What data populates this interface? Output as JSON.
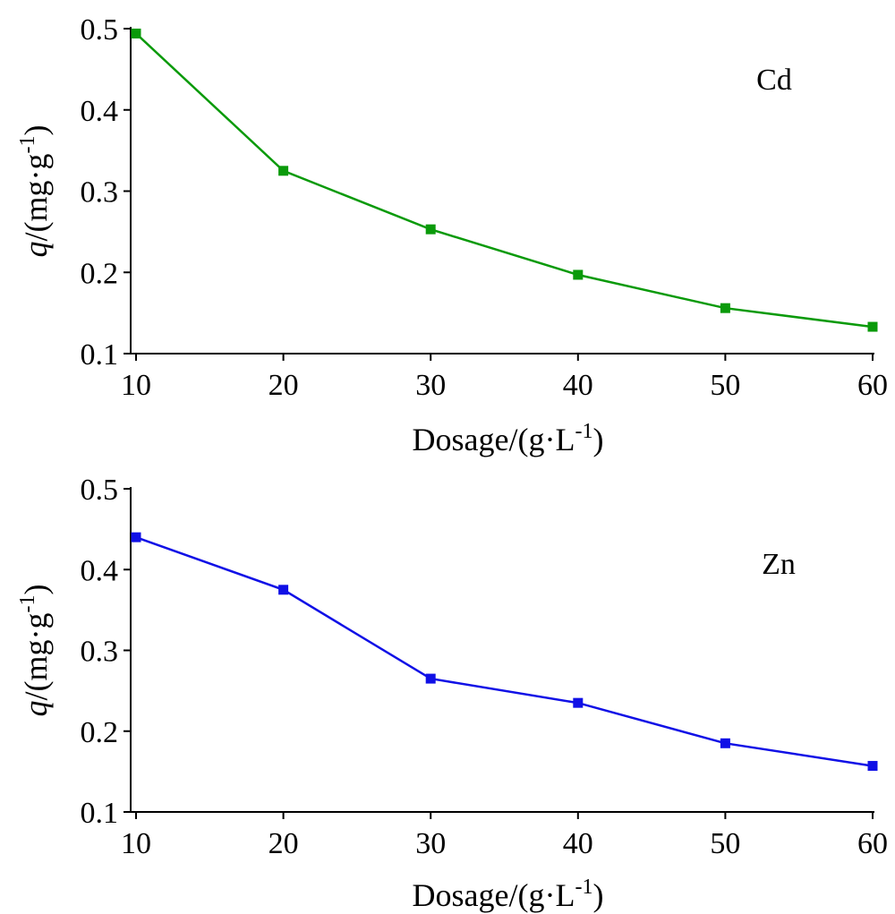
{
  "chart_data": [
    {
      "type": "line",
      "annotation": "Cd",
      "xlabel_parts": [
        "Dosage/(g·L",
        "-1",
        ")"
      ],
      "ylabel_parts": [
        "q",
        "/(mg·g",
        "-1",
        ")"
      ],
      "x": [
        10,
        20,
        30,
        40,
        50,
        60
      ],
      "series": [
        {
          "values": [
            0.494,
            0.325,
            0.253,
            0.197,
            0.156,
            0.133
          ],
          "color": "#0a9a0a"
        }
      ],
      "xlim": [
        10,
        60
      ],
      "ylim": [
        0.1,
        0.5
      ],
      "xticks": [
        "10",
        "20",
        "30",
        "40",
        "50",
        "60"
      ],
      "yticks": [
        "0.1",
        "0.2",
        "0.3",
        "0.4",
        "0.5"
      ],
      "grid": false,
      "marker": "square"
    },
    {
      "type": "line",
      "annotation": "Zn",
      "xlabel_parts": [
        "Dosage/(g·L",
        "-1",
        ")"
      ],
      "ylabel_parts": [
        "q",
        "/(mg·g",
        "-1",
        ")"
      ],
      "x": [
        10,
        20,
        30,
        40,
        50,
        60
      ],
      "series": [
        {
          "values": [
            0.44,
            0.375,
            0.265,
            0.235,
            0.185,
            0.157
          ],
          "color": "#1010e6"
        }
      ],
      "xlim": [
        10,
        60
      ],
      "ylim": [
        0.1,
        0.5
      ],
      "xticks": [
        "10",
        "20",
        "30",
        "40",
        "50",
        "60"
      ],
      "yticks": [
        "0.1",
        "0.2",
        "0.3",
        "0.4",
        "0.5"
      ],
      "grid": false,
      "marker": "square"
    }
  ]
}
